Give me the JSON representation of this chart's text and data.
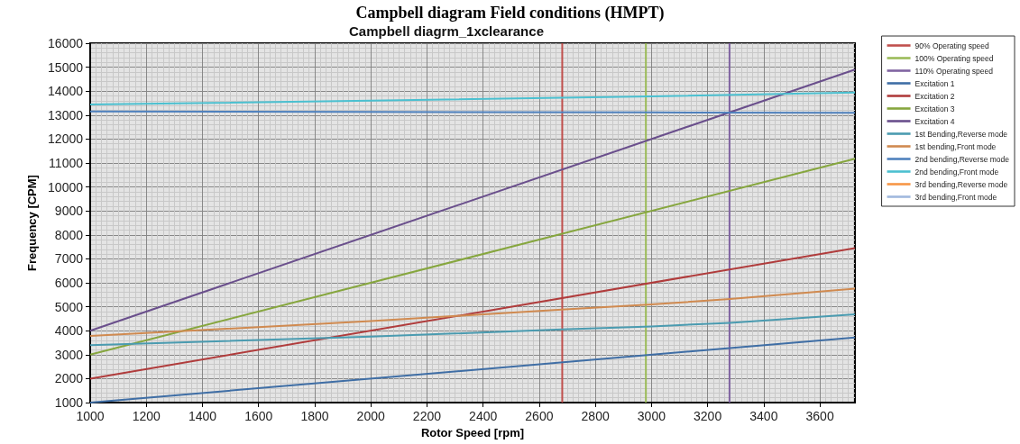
{
  "chart_data": {
    "type": "line",
    "title": "Campbell diagram Field conditions (HMPT)",
    "subtitle": "Campbell diagrm_1xclearance",
    "xlabel": "Rotor Speed [rpm]",
    "ylabel": "Frequency [CPM]",
    "xlim": [
      1000,
      3725
    ],
    "xticks": [
      1000,
      1200,
      1400,
      1600,
      1800,
      2000,
      2200,
      2400,
      2600,
      2800,
      3000,
      3200,
      3400,
      3600
    ],
    "ylim": [
      1000,
      16000
    ],
    "yticks": [
      1000,
      2000,
      3000,
      4000,
      5000,
      6000,
      7000,
      8000,
      9000,
      10000,
      11000,
      12000,
      13000,
      14000,
      15000,
      16000
    ],
    "grid": true,
    "legend": "right",
    "marker": "none",
    "line_style": "solid",
    "series": [
      {
        "name": "90% Operating speed",
        "color": "#c0504d",
        "x": [
          2682,
          2682
        ],
        "values": [
          1000,
          16000
        ]
      },
      {
        "name": "100% Operating speed",
        "color": "#9bbb59",
        "x": [
          2980,
          2980
        ],
        "values": [
          1000,
          16000
        ]
      },
      {
        "name": "110% Operating speed",
        "color": "#8064a2",
        "x": [
          3278,
          3278
        ],
        "values": [
          1000,
          16000
        ]
      },
      {
        "name": "Excitation 1",
        "color": "#3f6ea5",
        "x": [
          1000,
          3725
        ],
        "values": [
          1000,
          3720
        ]
      },
      {
        "name": "Excitation 2",
        "color": "#b03c3c",
        "x": [
          1000,
          3725
        ],
        "values": [
          2000,
          7450
        ]
      },
      {
        "name": "Excitation 3",
        "color": "#86a63e",
        "x": [
          1000,
          3725
        ],
        "values": [
          3000,
          11180
        ]
      },
      {
        "name": "Excitation 4",
        "color": "#6a4f8c",
        "x": [
          1000,
          3725
        ],
        "values": [
          4000,
          14900
        ]
      },
      {
        "name": "1st Bending,Reverse mode",
        "color": "#4a9bb0",
        "x": [
          1000,
          2000,
          2680,
          3000,
          3280,
          3725
        ],
        "values": [
          3400,
          3750,
          4050,
          4180,
          4330,
          4680
        ]
      },
      {
        "name": "1st bending,Front mode",
        "color": "#d08a50",
        "x": [
          1000,
          2000,
          2680,
          3000,
          3280,
          3725
        ],
        "values": [
          3780,
          4400,
          4880,
          5100,
          5320,
          5760
        ]
      },
      {
        "name": "2nd bending,Reverse mode",
        "color": "#4f81bd",
        "x": [
          1000,
          2000,
          3000,
          3725
        ],
        "values": [
          13150,
          13130,
          13110,
          13100
        ]
      },
      {
        "name": "2nd bending,Front mode",
        "color": "#4bc0d0",
        "x": [
          1000,
          2000,
          3000,
          3725
        ],
        "values": [
          13440,
          13600,
          13780,
          13940
        ]
      },
      {
        "name": "3rd bending,Reverse mode",
        "color": "#f79646"
      },
      {
        "name": "3rd bending,Front mode",
        "color": "#a0b8de"
      }
    ]
  }
}
